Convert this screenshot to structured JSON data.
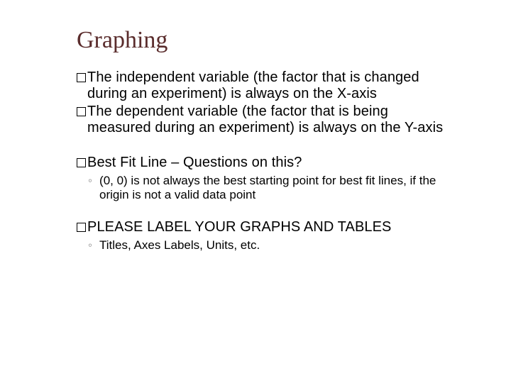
{
  "slide": {
    "title": "Graphing",
    "title_color": "#5a2c2c",
    "title_fontfamily": "Georgia, serif",
    "title_fontsize": 34,
    "background_color": "#ffffff",
    "body_fontsize": 20,
    "sub_fontsize": 17,
    "bullet_box_border_color": "#000000",
    "sub_marker_color": "#8a8a8a",
    "bullets": [
      {
        "text": "The independent variable (the factor that is changed during an experiment) is always on the X-axis",
        "subs": []
      },
      {
        "text": "The dependent variable (the factor that is being measured during an experiment) is always on the Y-axis",
        "subs": []
      },
      {
        "text": "Best Fit Line – Questions on this?",
        "subs": [
          "(0, 0) is not always the best starting point for best fit lines, if the origin is not a valid data point"
        ]
      },
      {
        "text": "PLEASE LABEL YOUR GRAPHS AND TABLES",
        "subs": [
          "Titles, Axes Labels, Units, etc."
        ]
      }
    ]
  }
}
